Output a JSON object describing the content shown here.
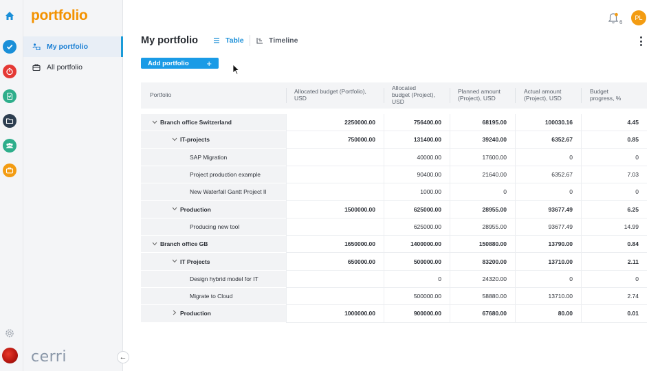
{
  "app": {
    "logo": "portfolio",
    "brand": "cerri"
  },
  "rail": {
    "icons": [
      {
        "name": "home-icon",
        "color": "#1a8fd8"
      },
      {
        "name": "check-icon",
        "color": "#1a8fd8"
      },
      {
        "name": "timer-icon",
        "color": "#e53935"
      },
      {
        "name": "document-icon",
        "color": "#2eae8b"
      },
      {
        "name": "folder-icon",
        "color": "#2d3e50"
      },
      {
        "name": "team-icon",
        "color": "#2eae8b"
      },
      {
        "name": "briefcase-icon",
        "color": "#f39c12"
      }
    ]
  },
  "sidebar": {
    "items": [
      {
        "label": "My portfolio",
        "active": true
      },
      {
        "label": "All portfolio",
        "active": false
      }
    ]
  },
  "topbar": {
    "notifications": "6",
    "user_initials": "PL"
  },
  "header": {
    "title": "My portfolio",
    "tabs": [
      {
        "label": "Table",
        "active": true
      },
      {
        "label": "Timeline",
        "active": false
      }
    ]
  },
  "toolbar": {
    "add_label": "Add portfolio"
  },
  "table": {
    "columns": [
      [
        "Portfolio"
      ],
      [
        "Allocated budget (Portfolio),",
        "USD"
      ],
      [
        "Allocated",
        "budget (Project),",
        "USD"
      ],
      [
        "Planned amount",
        "(Project), USD"
      ],
      [
        "Actual amount",
        "(Project), USD"
      ],
      [
        "Budget",
        "progress, %"
      ]
    ],
    "rows": [
      {
        "name": "Branch office Switzerland",
        "level": 0,
        "chevron": "down",
        "bold": true,
        "values": [
          "2250000.00",
          "756400.00",
          "68195.00",
          "100030.16",
          "4.45"
        ]
      },
      {
        "name": "IT-projects",
        "level": 1,
        "chevron": "down",
        "bold": true,
        "values": [
          "750000.00",
          "131400.00",
          "39240.00",
          "6352.67",
          "0.85"
        ]
      },
      {
        "name": "SAP Migration",
        "level": 2,
        "chevron": "",
        "bold": false,
        "values": [
          "",
          "40000.00",
          "17600.00",
          "0",
          "0"
        ]
      },
      {
        "name": "Project production example",
        "level": 2,
        "chevron": "",
        "bold": false,
        "values": [
          "",
          "90400.00",
          "21640.00",
          "6352.67",
          "7.03"
        ]
      },
      {
        "name": "New Waterfall Gantt Project II",
        "level": 2,
        "chevron": "",
        "bold": false,
        "values": [
          "",
          "1000.00",
          "0",
          "0",
          "0"
        ]
      },
      {
        "name": "Production",
        "level": 1,
        "chevron": "down",
        "bold": true,
        "values": [
          "1500000.00",
          "625000.00",
          "28955.00",
          "93677.49",
          "6.25"
        ]
      },
      {
        "name": "Producing new tool",
        "level": 2,
        "chevron": "",
        "bold": false,
        "values": [
          "",
          "625000.00",
          "28955.00",
          "93677.49",
          "14.99"
        ]
      },
      {
        "name": "Branch office GB",
        "level": 0,
        "chevron": "down",
        "bold": true,
        "values": [
          "1650000.00",
          "1400000.00",
          "150880.00",
          "13790.00",
          "0.84"
        ]
      },
      {
        "name": "IT Projects",
        "level": 1,
        "chevron": "down",
        "bold": true,
        "values": [
          "650000.00",
          "500000.00",
          "83200.00",
          "13710.00",
          "2.11"
        ]
      },
      {
        "name": "Design hybrid model for IT",
        "level": 2,
        "chevron": "",
        "bold": false,
        "values": [
          "",
          "0",
          "24320.00",
          "0",
          "0"
        ]
      },
      {
        "name": "Migrate to Cloud",
        "level": 2,
        "chevron": "",
        "bold": false,
        "values": [
          "",
          "500000.00",
          "58880.00",
          "13710.00",
          "2.74"
        ]
      },
      {
        "name": "Production",
        "level": 1,
        "chevron": "right",
        "bold": true,
        "values": [
          "1000000.00",
          "900000.00",
          "67680.00",
          "80.00",
          "0.01"
        ]
      }
    ]
  }
}
